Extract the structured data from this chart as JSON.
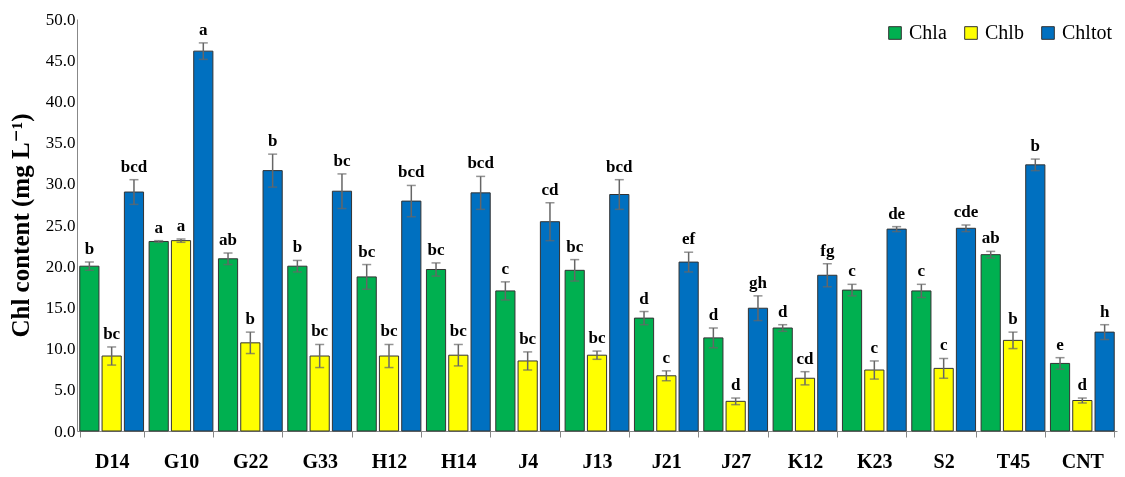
{
  "chart_data": {
    "type": "bar",
    "ylabel": "Chl content (mg L⁻¹)",
    "categories": [
      "D14",
      "G10",
      "G22",
      "G33",
      "H12",
      "H14",
      "J4",
      "J13",
      "J21",
      "J27",
      "K12",
      "K23",
      "S2",
      "T45",
      "CNT"
    ],
    "series": [
      {
        "name": "Chla",
        "color": "#00b050",
        "values": [
          20.0,
          23.0,
          20.9,
          20.0,
          18.7,
          19.6,
          17.0,
          19.5,
          13.7,
          11.3,
          12.5,
          17.1,
          17.0,
          21.4,
          8.2
        ],
        "errors": [
          0.5,
          0.1,
          0.7,
          0.7,
          1.5,
          0.8,
          1.1,
          1.3,
          0.8,
          1.2,
          0.4,
          0.7,
          0.8,
          0.4,
          0.7
        ],
        "value_labels": [
          "b",
          "a",
          "ab",
          "b",
          "bc",
          "bc",
          "c",
          "bc",
          "d",
          "d",
          "d",
          "c",
          "c",
          "ab",
          "e"
        ]
      },
      {
        "name": "Chlb",
        "color": "#ffff00",
        "values": [
          9.1,
          23.1,
          10.7,
          9.1,
          9.1,
          9.2,
          8.5,
          9.2,
          6.7,
          3.6,
          6.4,
          7.4,
          7.6,
          11.0,
          3.7
        ],
        "errors": [
          1.1,
          0.2,
          1.3,
          1.4,
          1.4,
          1.3,
          1.1,
          0.5,
          0.6,
          0.4,
          0.8,
          1.1,
          1.2,
          1.0,
          0.3
        ],
        "value_labels": [
          "bc",
          "a",
          "b",
          "bc",
          "bc",
          "bc",
          "bc",
          "bc",
          "c",
          "d",
          "cd",
          "c",
          "c",
          "b",
          "d"
        ]
      },
      {
        "name": "Chltot",
        "color": "#0070c0",
        "values": [
          29.0,
          46.1,
          31.6,
          29.1,
          27.9,
          28.9,
          25.4,
          28.7,
          20.5,
          14.9,
          18.9,
          24.5,
          24.6,
          32.3,
          12.0
        ],
        "errors": [
          1.5,
          1.0,
          2.0,
          2.1,
          1.9,
          2.0,
          2.3,
          1.8,
          1.2,
          1.5,
          1.4,
          0.3,
          0.4,
          0.7,
          0.9
        ],
        "value_labels": [
          "bcd",
          "a",
          "b",
          "bc",
          "bcd",
          "bcd",
          "cd",
          "bcd",
          "ef",
          "gh",
          "fg",
          "de",
          "cde",
          "b",
          "h"
        ]
      }
    ],
    "ylim": [
      0,
      50
    ],
    "yticks": [
      {
        "value": 0,
        "label": "0.0"
      },
      {
        "value": 5,
        "label": "5.0"
      },
      {
        "value": 10,
        "label": "10.0"
      },
      {
        "value": 15,
        "label": "15.0"
      },
      {
        "value": 20,
        "label": "20.0"
      },
      {
        "value": 25,
        "label": "25.0"
      },
      {
        "value": 30,
        "label": "30.0"
      },
      {
        "value": 35,
        "label": "35.0"
      },
      {
        "value": 40,
        "label": "40.0"
      },
      {
        "value": 45,
        "label": "45.0"
      },
      {
        "value": 50,
        "label": "50.0"
      }
    ],
    "legend": "top right",
    "grid": false
  }
}
